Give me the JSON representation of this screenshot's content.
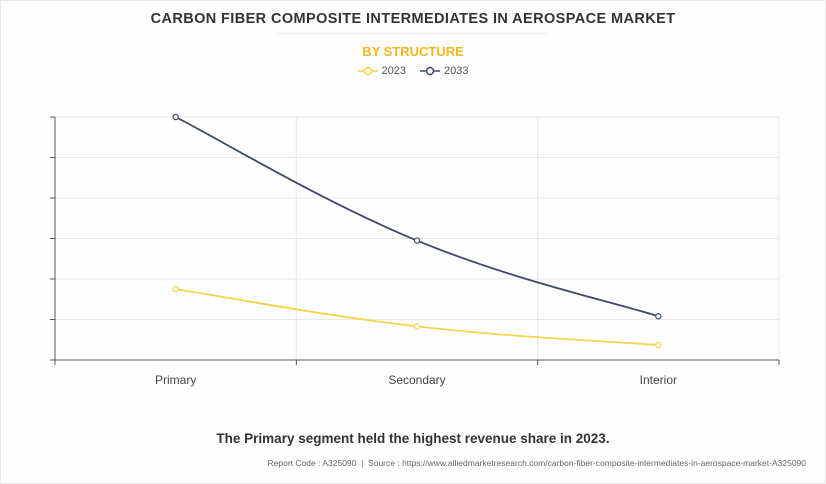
{
  "title": "CARBON FIBER COMPOSITE INTERMEDIATES IN AEROSPACE MARKET",
  "subtitle": "BY STRUCTURE",
  "caption": "The Primary segment held the highest revenue share in 2023.",
  "footer": {
    "report_code": "Report Code : A325090",
    "separator": "|",
    "source": "Source : https://www.alliedmarketresearch.com/carbon-fiber-composite-intermediates-in-aerospace-market-A325090"
  },
  "colors": {
    "2023": "#f7d44c",
    "2033": "#3d4a6b",
    "title": "#333333",
    "subtitle": "#f4b51f"
  },
  "chart_data": {
    "type": "line",
    "categories": [
      "Primary",
      "Secondary",
      "Interior"
    ],
    "series": [
      {
        "name": "2023",
        "values": [
          1.75,
          0.83,
          0.37
        ]
      },
      {
        "name": "2033",
        "values": [
          6.0,
          2.95,
          1.08
        ]
      }
    ],
    "ylim": [
      0,
      6
    ],
    "grid": true,
    "legend_position": "top-center",
    "y_tick_labels_shown": false
  }
}
